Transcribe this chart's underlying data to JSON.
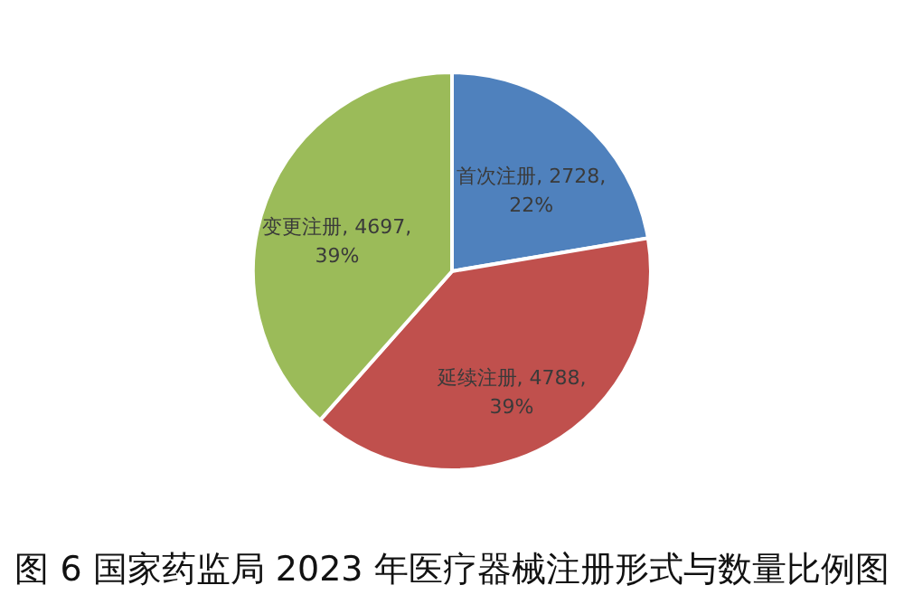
{
  "chart_data": {
    "type": "pie",
    "title": "图 6 国家药监局 2023 年医疗器械注册形式与数量比例图",
    "categories": [
      "首次注册",
      "延续注册",
      "变更注册"
    ],
    "values": [
      2728,
      4788,
      4697
    ],
    "colors": [
      "#4f81bd",
      "#c0504d",
      "#9bbb59"
    ],
    "value_labels": [
      "2728, 22%",
      "4788, 39%",
      "4697, 39%"
    ]
  }
}
